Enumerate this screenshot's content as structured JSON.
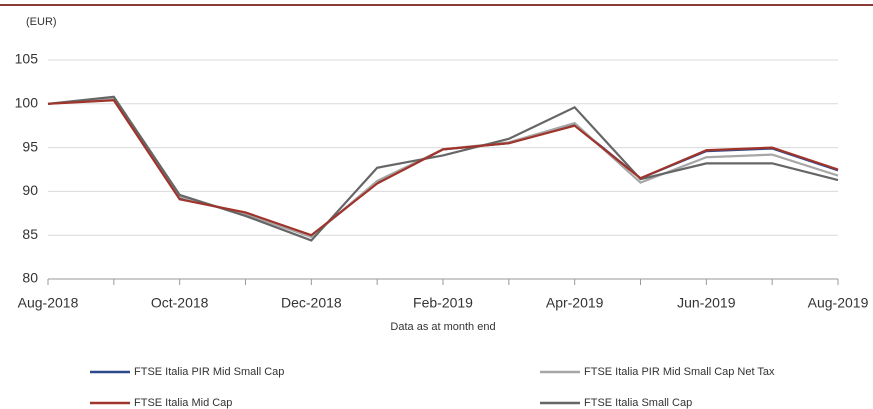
{
  "chart_data": {
    "type": "line",
    "y_label": "(EUR)",
    "x_label": "Data as at month end",
    "categories": [
      "Aug-2018",
      null,
      "Oct-2018",
      null,
      "Dec-2018",
      null,
      "Feb-2019",
      null,
      "Apr-2019",
      null,
      "Jun-2019",
      null,
      "Aug-2019"
    ],
    "series": [
      {
        "name": "FTSE Italia PIR Mid Small Cap",
        "color": "#2e4a8c",
        "values": [
          100,
          100.5,
          89.2,
          87.5,
          84.9,
          91.0,
          94.8,
          95.5,
          97.6,
          91.5,
          94.6,
          94.9,
          92.4
        ]
      },
      {
        "name": "FTSE Italia PIR Mid Small Cap Net Tax",
        "color": "#a6a6a6",
        "values": [
          100,
          100.6,
          89.4,
          87.4,
          84.8,
          91.2,
          94.8,
          95.6,
          97.8,
          91.0,
          93.9,
          94.2,
          91.8
        ]
      },
      {
        "name": "FTSE Italia Mid Cap",
        "color": "#a0342a",
        "values": [
          100,
          100.4,
          89.1,
          87.6,
          85.0,
          90.9,
          94.8,
          95.5,
          97.5,
          91.5,
          94.7,
          95.0,
          92.5
        ]
      },
      {
        "name": "FTSE Italia Small Cap",
        "color": "#666666",
        "values": [
          100,
          100.8,
          89.6,
          87.2,
          84.4,
          92.7,
          94.1,
          96.0,
          99.6,
          91.4,
          93.2,
          93.2,
          91.3
        ]
      }
    ],
    "ylim": [
      80,
      105
    ],
    "yticks": [
      80,
      85,
      90,
      95,
      100,
      105
    ],
    "grid": true
  }
}
